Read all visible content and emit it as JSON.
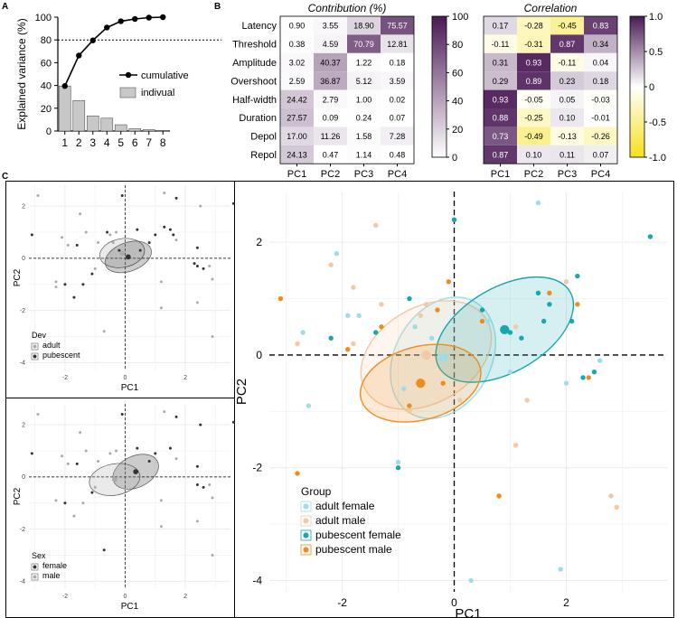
{
  "panels": {
    "A": {
      "letter": "A"
    },
    "B": {
      "letter": "B"
    },
    "C": {
      "letter": "C"
    }
  },
  "colors": {
    "bar": "#c8c8c8",
    "line": "#000000",
    "heat_high": "#4a1a55",
    "heat_low": "#ffffff",
    "corr_neg": "#f5e11a",
    "adult_female": "#9fdde6",
    "adult_male": "#f3c9a3",
    "pubescent_female": "#1aa6ad",
    "pubescent_male": "#ee8c1e"
  },
  "chart_data": [
    {
      "id": "A",
      "type": "bar",
      "title": "",
      "xlabel": "",
      "ylabel": "Explained variance (%)",
      "categories": [
        "1",
        "2",
        "3",
        "4",
        "5",
        "6",
        "7",
        "8"
      ],
      "ylim": [
        0,
        100
      ],
      "yticks": [
        0,
        20,
        40,
        60,
        80,
        100
      ],
      "reference_line": 80,
      "series": [
        {
          "name": "indivual",
          "kind": "bar",
          "values": [
            39.5,
            26.8,
            13.3,
            11.3,
            5.5,
            2.0,
            1.2,
            0.4
          ]
        },
        {
          "name": "cumulative",
          "kind": "line",
          "values": [
            39.5,
            66.3,
            79.6,
            90.9,
            96.4,
            98.4,
            99.6,
            100
          ]
        }
      ],
      "legend": {
        "cumulative": "cumulative",
        "individual": "indivual",
        "position": "right"
      }
    },
    {
      "id": "B-contribution",
      "type": "heatmap",
      "title": "Contribution (%)",
      "rows": [
        "Latency",
        "Threshold",
        "Amplitude",
        "Overshoot",
        "Half-width",
        "Duration",
        "Depol",
        "Repol"
      ],
      "columns": [
        "PC1",
        "PC2",
        "PC3",
        "PC4"
      ],
      "values": [
        [
          0.9,
          3.55,
          18.9,
          75.57
        ],
        [
          0.38,
          4.59,
          70.79,
          12.81
        ],
        [
          3.02,
          40.37,
          1.22,
          0.18
        ],
        [
          2.59,
          36.87,
          5.12,
          3.59
        ],
        [
          24.42,
          2.79,
          1.0,
          0.02
        ],
        [
          27.57,
          0.09,
          0.24,
          0.07
        ],
        [
          17.0,
          11.26,
          1.58,
          7.28
        ],
        [
          24.13,
          0.47,
          1.14,
          0.48
        ]
      ],
      "cell_labels": [
        [
          "0.90",
          "3.55",
          "18.90",
          "75.57"
        ],
        [
          "0.38",
          "4.59",
          "70.79",
          "12.81"
        ],
        [
          "3.02",
          "40.37",
          "1.22",
          "0.18"
        ],
        [
          "2.59",
          "36.87",
          "5.12",
          "3.59"
        ],
        [
          "24.42",
          "2.79",
          "1.00",
          "0.02"
        ],
        [
          "27.57",
          "0.09",
          "0.24",
          "0.07"
        ],
        [
          "17.00",
          "11.26",
          "1.58",
          "7.28"
        ],
        [
          "24.13",
          "0.47",
          "1.14",
          "0.48"
        ]
      ],
      "colorbar": {
        "range": [
          0,
          100
        ],
        "ticks": [
          "100",
          "80",
          "60",
          "40",
          "20",
          "0"
        ]
      }
    },
    {
      "id": "B-correlation",
      "type": "heatmap",
      "title": "Correlation",
      "rows": [
        "Latency",
        "Threshold",
        "Amplitude",
        "Overshoot",
        "Half-width",
        "Duration",
        "Depol",
        "Repol"
      ],
      "columns": [
        "PC1",
        "PC2",
        "PC3",
        "PC4"
      ],
      "values": [
        [
          0.17,
          -0.28,
          -0.45,
          0.83
        ],
        [
          -0.11,
          -0.31,
          0.87,
          0.34
        ],
        [
          0.31,
          0.93,
          -0.11,
          0.04
        ],
        [
          0.29,
          0.89,
          0.23,
          0.18
        ],
        [
          0.93,
          -0.05,
          0.05,
          -0.03
        ],
        [
          0.88,
          -0.25,
          0.1,
          -0.01
        ],
        [
          0.73,
          -0.49,
          -0.13,
          -0.26
        ],
        [
          0.87,
          0.1,
          0.11,
          0.07
        ]
      ],
      "cell_labels": [
        [
          "0.17",
          "-0.28",
          "-0.45",
          "0.83"
        ],
        [
          "-0.11",
          "-0.31",
          "0.87",
          "0.34"
        ],
        [
          "0.31",
          "0.93",
          "-0.11",
          "0.04"
        ],
        [
          "0.29",
          "0.89",
          "0.23",
          "0.18"
        ],
        [
          "0.93",
          "-0.05",
          "0.05",
          "-0.03"
        ],
        [
          "0.88",
          "-0.25",
          "0.10",
          "-0.01"
        ],
        [
          "0.73",
          "-0.49",
          "-0.13",
          "-0.26"
        ],
        [
          "0.87",
          "0.10",
          "0.11",
          "0.07"
        ]
      ],
      "colorbar": {
        "range": [
          -1,
          1
        ],
        "ticks": [
          "1.0",
          "0.5",
          "0",
          "-0.5",
          "-1.0"
        ]
      }
    },
    {
      "id": "C-dev",
      "type": "scatter",
      "xlabel": "PC1",
      "ylabel": "PC2",
      "xlim": [
        -3.2,
        3.5
      ],
      "ylim": [
        -4.3,
        2.8
      ],
      "xticks": [
        -2,
        0,
        2
      ],
      "yticks": [
        2,
        0,
        -2,
        -4
      ],
      "legend_title": "Dev",
      "groups": [
        {
          "name": "adult",
          "color": "#aaaaaa",
          "points": [
            [
              -2.9,
              2.4
            ],
            [
              -2.1,
              0.8
            ],
            [
              -1.9,
              0.5
            ],
            [
              -1.5,
              1.7
            ],
            [
              -1.3,
              1.0
            ],
            [
              -0.9,
              0.6
            ],
            [
              -0.5,
              0.9
            ],
            [
              -0.4,
              0.6
            ],
            [
              -2.3,
              -0.9
            ],
            [
              -1.0,
              -0.4
            ],
            [
              1.2,
              -0.9
            ],
            [
              1.2,
              -1.9
            ],
            [
              -0.7,
              -2.8
            ],
            [
              2.5,
              2.0
            ],
            [
              2.8,
              -0.3
            ],
            [
              2.9,
              -0.8
            ],
            [
              2.4,
              -1.7
            ],
            [
              2.9,
              -3.0
            ],
            [
              -2.3,
              -1.1
            ],
            [
              -0.3,
              1.0
            ],
            [
              1.3,
              2.5
            ],
            [
              1.7,
              0.7
            ]
          ],
          "centroid": [
            -0.1,
            0.2
          ],
          "ellipse": {
            "rx": 0.75,
            "ry": 0.55,
            "angle": 10
          }
        },
        {
          "name": "pubescent",
          "color": "#333333",
          "points": [
            [
              -3.1,
              0.9
            ],
            [
              -1.6,
              0.5
            ],
            [
              -2.0,
              -1.0
            ],
            [
              -1.7,
              -1.5
            ],
            [
              -1.4,
              -1.0
            ],
            [
              -1.1,
              -0.6
            ],
            [
              0.8,
              0.6
            ],
            [
              1.0,
              0.9
            ],
            [
              0.5,
              0.3
            ],
            [
              1.5,
              1.1
            ],
            [
              1.6,
              0.9
            ],
            [
              2.4,
              0.4
            ],
            [
              2.4,
              -0.3
            ],
            [
              2.6,
              -0.4
            ],
            [
              2.3,
              -0.2
            ],
            [
              3.6,
              2.1
            ],
            [
              -0.1,
              2.4
            ],
            [
              0.4,
              1.1
            ],
            [
              1.3,
              1.2
            ],
            [
              -0.2,
              0.3
            ],
            [
              -0.6,
              1.0
            ],
            [
              1.7,
              2.3
            ]
          ],
          "centroid": [
            0.1,
            0.05
          ],
          "ellipse": {
            "rx": 0.8,
            "ry": 0.55,
            "angle": 20
          }
        }
      ]
    },
    {
      "id": "C-sex",
      "type": "scatter",
      "xlabel": "PC1",
      "ylabel": "PC2",
      "xlim": [
        -3.2,
        3.5
      ],
      "ylim": [
        -4.3,
        2.8
      ],
      "xticks": [
        -2,
        0,
        2
      ],
      "yticks": [
        2,
        0,
        -2,
        -4
      ],
      "legend_title": "Sex",
      "groups": [
        {
          "name": "female",
          "color": "#333333",
          "points": [
            [
              -3.1,
              0.9
            ],
            [
              -1.6,
              0.5
            ],
            [
              -2.0,
              -1.0
            ],
            [
              -0.1,
              2.4
            ],
            [
              0.8,
              0.6
            ],
            [
              1.0,
              0.9
            ],
            [
              1.5,
              1.1
            ],
            [
              2.4,
              0.4
            ],
            [
              2.4,
              -0.3
            ],
            [
              2.6,
              -0.4
            ],
            [
              3.6,
              2.1
            ],
            [
              -1.1,
              -0.6
            ],
            [
              0.4,
              1.1
            ],
            [
              1.7,
              2.3
            ],
            [
              -0.7,
              -2.8
            ],
            [
              2.5,
              2.0
            ]
          ],
          "centroid": [
            0.35,
            0.2
          ],
          "ellipse": {
            "rx": 0.8,
            "ry": 0.6,
            "angle": 25
          }
        },
        {
          "name": "male",
          "color": "#aaaaaa",
          "points": [
            [
              -2.9,
              2.4
            ],
            [
              -2.1,
              0.8
            ],
            [
              -1.9,
              0.5
            ],
            [
              -1.5,
              1.7
            ],
            [
              -1.3,
              1.0
            ],
            [
              -0.9,
              0.6
            ],
            [
              -0.5,
              0.9
            ],
            [
              -2.3,
              -0.9
            ],
            [
              -1.0,
              -0.4
            ],
            [
              1.2,
              -0.9
            ],
            [
              1.2,
              -1.9
            ],
            [
              2.8,
              -0.3
            ],
            [
              2.9,
              -0.8
            ],
            [
              2.4,
              -1.7
            ],
            [
              2.9,
              -3.0
            ],
            [
              -1.7,
              -1.5
            ],
            [
              -1.4,
              -1.0
            ],
            [
              1.3,
              2.5
            ],
            [
              1.7,
              0.7
            ],
            [
              -0.3,
              1.0
            ]
          ],
          "centroid": [
            -0.35,
            -0.1
          ],
          "ellipse": {
            "rx": 0.85,
            "ry": 0.6,
            "angle": 10
          }
        }
      ]
    },
    {
      "id": "C-group",
      "type": "scatter",
      "xlabel": "PC1",
      "ylabel": "PC2",
      "xlim": [
        -3.3,
        3.8
      ],
      "ylim": [
        -4.2,
        2.9
      ],
      "xticks": [
        -2,
        0,
        2
      ],
      "yticks": [
        2,
        0,
        -2,
        -4
      ],
      "legend_title": "Group",
      "groups": [
        {
          "name": "adult female",
          "color": "#9fdde6",
          "points": [
            [
              1.5,
              2.7
            ],
            [
              -2.1,
              1.8
            ],
            [
              -1.9,
              0.7
            ],
            [
              -1.7,
              0.7
            ],
            [
              -2.7,
              0.4
            ],
            [
              -0.7,
              0.5
            ],
            [
              0.6,
              0.6
            ],
            [
              -0.4,
              0.3
            ],
            [
              -0.9,
              -0.6
            ],
            [
              1.0,
              -0.3
            ],
            [
              2.6,
              -0.1
            ],
            [
              2.0,
              -0.5
            ],
            [
              -2.6,
              -0.9
            ],
            [
              0.3,
              -4.0
            ],
            [
              1.9,
              -3.8
            ],
            [
              -1.0,
              -1.9
            ]
          ],
          "centroid": [
            -0.2,
            -0.05
          ],
          "ellipse": {
            "rx": 1.15,
            "ry": 0.85,
            "angle": 60
          }
        },
        {
          "name": "adult male",
          "color": "#f3c9a3",
          "points": [
            [
              -1.4,
              2.3
            ],
            [
              -2.2,
              1.6
            ],
            [
              -1.8,
              1.2
            ],
            [
              -1.3,
              0.9
            ],
            [
              -0.5,
              0.9
            ],
            [
              -0.6,
              0.7
            ],
            [
              1.3,
              -0.8
            ],
            [
              1.1,
              -1.6
            ],
            [
              2.0,
              1.3
            ],
            [
              2.8,
              -2.5
            ],
            [
              2.9,
              -2.7
            ],
            [
              1.1,
              0.5
            ],
            [
              -2.8,
              0.2
            ],
            [
              -1.8,
              0.2
            ],
            [
              -0.8,
              -1.0
            ],
            [
              0.1,
              -0.8
            ]
          ],
          "centroid": [
            -0.5,
            0.0
          ],
          "ellipse": {
            "rx": 1.25,
            "ry": 0.85,
            "angle": 30
          }
        },
        {
          "name": "pubescent female",
          "color": "#1aa6ad",
          "points": [
            [
              0.0,
              2.4
            ],
            [
              3.5,
              2.1
            ],
            [
              2.2,
              1.4
            ],
            [
              -0.8,
              1.0
            ],
            [
              0.5,
              0.8
            ],
            [
              1.6,
              0.6
            ],
            [
              1.5,
              1.1
            ],
            [
              1.7,
              0.9
            ],
            [
              2.1,
              0.6
            ],
            [
              -2.2,
              0.3
            ],
            [
              -1.4,
              0.4
            ],
            [
              2.5,
              -0.3
            ],
            [
              2.3,
              -0.4
            ],
            [
              -1.0,
              -2.0
            ],
            [
              1.2,
              0.3
            ],
            [
              1.0,
              0.4
            ]
          ],
          "centroid": [
            0.9,
            0.45
          ],
          "ellipse": {
            "rx": 1.35,
            "ry": 0.75,
            "angle": 30
          }
        },
        {
          "name": "pubescent male",
          "color": "#ee8c1e",
          "points": [
            [
              -3.1,
              1.0
            ],
            [
              -0.1,
              1.3
            ],
            [
              -0.3,
              0.8
            ],
            [
              0.5,
              0.6
            ],
            [
              1.7,
              1.1
            ],
            [
              2.4,
              -0.4
            ],
            [
              0.8,
              -2.5
            ],
            [
              -2.8,
              -2.1
            ],
            [
              -1.3,
              0.5
            ],
            [
              -0.8,
              -0.9
            ],
            [
              -0.2,
              -0.5
            ],
            [
              2.2,
              0.9
            ],
            [
              -1.9,
              0.1
            ]
          ],
          "centroid": [
            -0.6,
            -0.5
          ],
          "ellipse": {
            "rx": 1.1,
            "ry": 0.65,
            "angle": 15
          }
        }
      ]
    }
  ]
}
